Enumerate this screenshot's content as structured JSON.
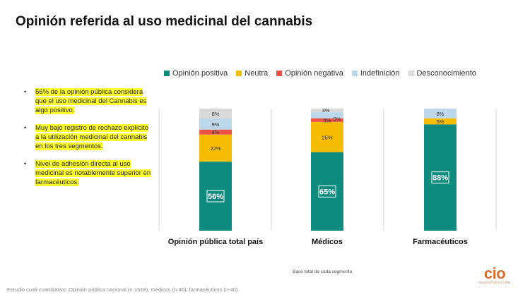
{
  "page": {
    "title": "Opinión referida al uso medicinal del cannabis",
    "bullets": [
      "56% de la opinión pública considera que el uso medicinal del Cannabis es algo positivo.",
      "Muy bajo registro de rechazo explícito a la utilización medicinal del cannabis en los tres segmentos.",
      "Nivel de adhesión directa al uso medicinal  es notablemente superior en farmacéuticos."
    ],
    "base_note": "Base total de cada segmento",
    "footer": "Estudio cuali-cuantitativo. Opinión pública nacional (n-1518), médicos (n-40), farmacéuticos (n-40).",
    "logo": {
      "mark": "cio",
      "sub": "INVESTIGACIÓN",
      "color": "#d96d2e"
    }
  },
  "chart_data": {
    "type": "bar",
    "stacked": true,
    "normalized": "100%",
    "categories": [
      "Opinión pública total país",
      "Médicos",
      "Farmacéuticos"
    ],
    "legend_position": "top",
    "grid": false,
    "ylim": [
      0,
      100
    ],
    "series": [
      {
        "name": "Opinión positiva",
        "color": "#0e8a7e",
        "values": [
          56,
          65,
          88
        ],
        "labels": [
          "56%",
          "65%",
          "88%"
        ]
      },
      {
        "name": "Neutra",
        "color": "#f5bc00",
        "values": [
          22,
          25,
          5
        ],
        "labels": [
          "22%",
          "25%",
          "5%"
        ]
      },
      {
        "name": "Opinión negativa",
        "color": "#ee5146",
        "values": [
          4,
          3,
          0
        ],
        "labels": [
          "4%",
          "3%",
          ""
        ]
      },
      {
        "name": "Indefinición",
        "color": "#bcd7ea",
        "values": [
          9,
          5,
          8
        ],
        "labels": [
          "9%",
          "5%",
          "8%"
        ]
      },
      {
        "name": "Desconocimiento",
        "color": "#d9d9d9",
        "values": [
          8,
          3,
          0
        ],
        "labels": [
          "8%",
          "3%",
          ""
        ]
      }
    ]
  }
}
